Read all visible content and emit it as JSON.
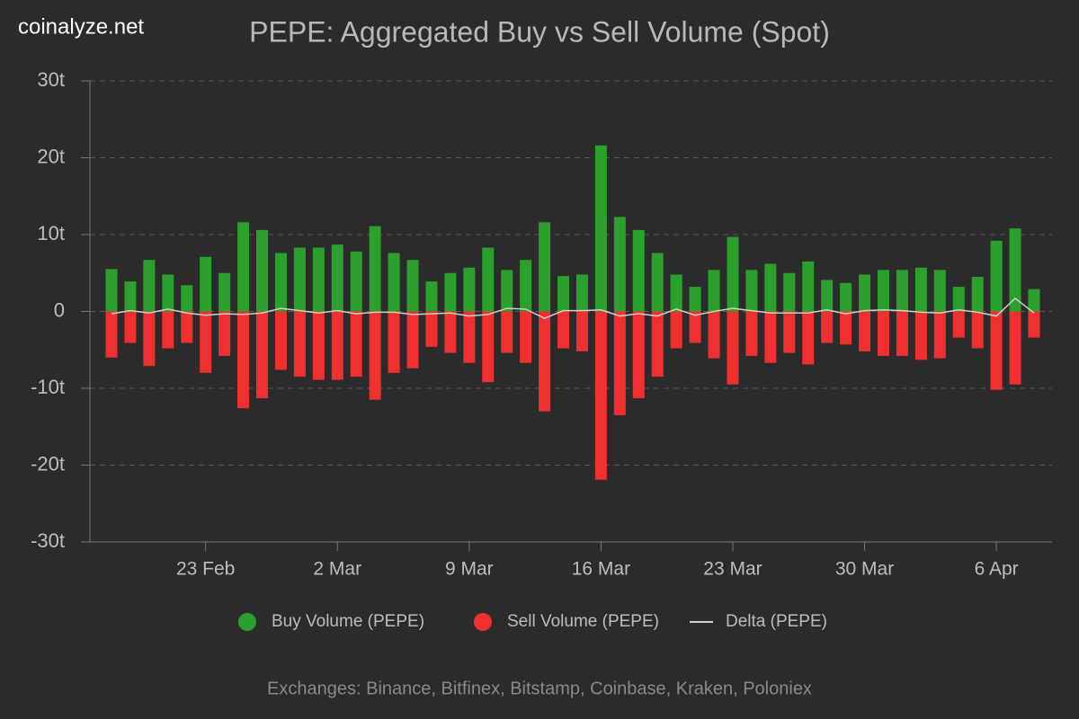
{
  "watermark": "coinalyze.net",
  "chart_data": {
    "type": "bar",
    "title": "PEPE: Aggregated Buy vs Sell Volume (Spot)",
    "footer": "Exchanges: Binance, Bitfinex, Bitstamp, Coinbase, Kraken, Poloniex",
    "categories": [
      null,
      null,
      null,
      null,
      null,
      "23 Feb",
      null,
      null,
      null,
      null,
      null,
      null,
      "2 Mar",
      null,
      null,
      null,
      null,
      null,
      null,
      "9 Mar",
      null,
      null,
      null,
      null,
      null,
      null,
      "16 Mar",
      null,
      null,
      null,
      null,
      null,
      null,
      "23 Mar",
      null,
      null,
      null,
      null,
      null,
      null,
      "30 Mar",
      null,
      null,
      null,
      null,
      null,
      null,
      "6 Apr",
      null,
      null
    ],
    "series": [
      {
        "name": "Buy Volume (PEPE)",
        "type": "bar",
        "color": "#2ca02c",
        "values": [
          5.5,
          3.9,
          6.7,
          4.8,
          3.4,
          7.1,
          5.0,
          11.6,
          10.6,
          7.6,
          8.3,
          8.3,
          8.7,
          7.8,
          11.1,
          7.6,
          6.7,
          3.9,
          5.0,
          5.7,
          8.3,
          5.4,
          6.7,
          11.6,
          4.6,
          4.8,
          21.6,
          12.3,
          10.6,
          7.6,
          4.8,
          3.2,
          5.4,
          9.7,
          5.4,
          6.2,
          5.0,
          6.5,
          4.1,
          3.7,
          4.8,
          5.4,
          5.4,
          5.7,
          5.4,
          3.2,
          4.5,
          9.2,
          10.8,
          2.9
        ]
      },
      {
        "name": "Sell Volume (PEPE)",
        "type": "bar",
        "color": "#f03030",
        "values": [
          -6.0,
          -4.1,
          -7.1,
          -4.8,
          -4.1,
          -8.0,
          -5.8,
          -12.6,
          -11.3,
          -7.6,
          -8.5,
          -8.9,
          -8.9,
          -8.5,
          -11.5,
          -8.0,
          -7.4,
          -4.6,
          -5.4,
          -6.7,
          -9.2,
          -5.4,
          -6.7,
          -13.0,
          -4.8,
          -5.2,
          -21.9,
          -13.5,
          -11.3,
          -8.5,
          -4.8,
          -4.1,
          -6.1,
          -9.5,
          -5.8,
          -6.7,
          -5.4,
          -6.9,
          -4.1,
          -4.3,
          -5.2,
          -5.8,
          -5.8,
          -6.3,
          -6.1,
          -3.4,
          -4.8,
          -10.2,
          -9.5,
          -3.4
        ]
      },
      {
        "name": "Delta (PEPE)",
        "type": "line",
        "color": "#d0d0d0",
        "values": [
          -0.3,
          0.1,
          -0.2,
          0.3,
          -0.2,
          -0.5,
          -0.3,
          -0.4,
          -0.2,
          0.4,
          0.1,
          -0.2,
          0.1,
          -0.3,
          -0.1,
          -0.1,
          -0.4,
          -0.3,
          -0.2,
          -0.6,
          -0.4,
          0.4,
          0.3,
          -0.9,
          0.1,
          0.1,
          0.2,
          -0.6,
          -0.3,
          -0.6,
          0.3,
          -0.5,
          0.0,
          0.4,
          0.1,
          -0.2,
          -0.2,
          -0.2,
          0.2,
          -0.3,
          0.1,
          0.2,
          0.1,
          -0.1,
          -0.2,
          0.2,
          -0.1,
          -0.6,
          1.7,
          -0.2
        ]
      }
    ],
    "ylim": [
      -30,
      30
    ],
    "yticks": [
      {
        "value": -30,
        "label": "-30t"
      },
      {
        "value": -20,
        "label": "-20t"
      },
      {
        "value": -10,
        "label": "-10t"
      },
      0,
      {
        "value": 10,
        "label": "10t"
      },
      {
        "value": 20,
        "label": "20t"
      },
      {
        "value": 30,
        "label": "30t"
      }
    ],
    "grid": true,
    "legend": "bottom"
  }
}
